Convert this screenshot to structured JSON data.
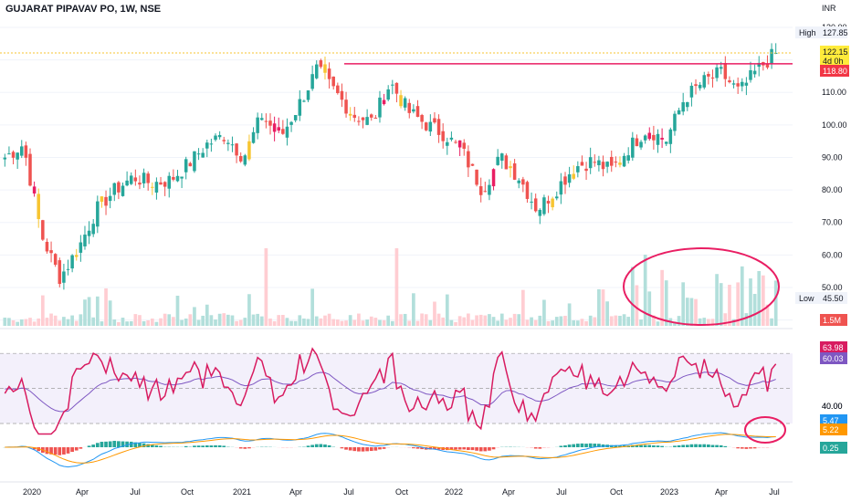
{
  "header": {
    "title": "GUJARAT PIPAVAV PO, 1W, NSE",
    "currency": "INR"
  },
  "colors": {
    "up": "#26a69a",
    "down": "#ef5350",
    "alt": "#e91e63",
    "yellow": "#f7c531",
    "rsi": "#d81b60",
    "rsi_ma": "#7e57c2",
    "macd": "#2196f3",
    "signal": "#ff9800",
    "annotation": "#e91e63"
  },
  "price_axis": {
    "ticks": [
      "130.00",
      "120.00",
      "110.00",
      "100.00",
      "90.00",
      "80.00",
      "70.00",
      "60.00",
      "50.00",
      "40.00"
    ]
  },
  "labels": {
    "high_label": "High",
    "high_value": "127.85",
    "last_value": "122.15",
    "countdown": "4d 0h",
    "resistance_value": "118.80",
    "low_label": "Low",
    "low_value": "45.50",
    "volume_value": "1.5M",
    "rsi_value": "63.98",
    "rsi_ma_value": "60.03",
    "rsi_level": "40.00",
    "macd_value": "5.47",
    "signal_value": "5.22",
    "hist_value": "0.25"
  },
  "time_axis": [
    "2020",
    "Apr",
    "Jul",
    "Oct",
    "2021",
    "Apr",
    "Jul",
    "Oct",
    "2022",
    "Apr",
    "Jul",
    "Oct",
    "2023",
    "Apr",
    "Jul"
  ],
  "chart_data": {
    "type": "candlestick",
    "title": "GUJARAT PIPAVAV PO, 1W, NSE",
    "ylim": [
      40,
      130
    ],
    "resistance": 118.8,
    "keypoints": [
      {
        "t": "2020-01",
        "close": 90
      },
      {
        "t": "2020-02",
        "close": 94
      },
      {
        "t": "2020-03",
        "close": 66
      },
      {
        "t": "2020-04",
        "close": 53
      },
      {
        "t": "2020-05",
        "close": 62
      },
      {
        "t": "2020-06",
        "close": 74
      },
      {
        "t": "2020-07",
        "close": 80
      },
      {
        "t": "2020-08",
        "close": 84
      },
      {
        "t": "2020-09",
        "close": 82
      },
      {
        "t": "2020-10",
        "close": 83
      },
      {
        "t": "2020-11",
        "close": 88
      },
      {
        "t": "2020-12",
        "close": 94
      },
      {
        "t": "2021-01",
        "close": 97
      },
      {
        "t": "2021-02",
        "close": 90
      },
      {
        "t": "2021-03",
        "close": 103
      },
      {
        "t": "2021-04",
        "close": 96
      },
      {
        "t": "2021-05",
        "close": 106
      },
      {
        "t": "2021-06",
        "close": 117
      },
      {
        "t": "2021-07",
        "close": 110
      },
      {
        "t": "2021-08",
        "close": 103
      },
      {
        "t": "2021-09",
        "close": 101
      },
      {
        "t": "2021-10",
        "close": 113
      },
      {
        "t": "2021-11",
        "close": 104
      },
      {
        "t": "2021-12",
        "close": 100
      },
      {
        "t": "2022-01",
        "close": 97
      },
      {
        "t": "2022-02",
        "close": 91
      },
      {
        "t": "2022-03",
        "close": 80
      },
      {
        "t": "2022-04",
        "close": 90
      },
      {
        "t": "2022-05",
        "close": 84
      },
      {
        "t": "2022-06",
        "close": 74
      },
      {
        "t": "2022-07",
        "close": 80
      },
      {
        "t": "2022-08",
        "close": 87
      },
      {
        "t": "2022-09",
        "close": 89
      },
      {
        "t": "2022-10",
        "close": 86
      },
      {
        "t": "2022-11",
        "close": 93
      },
      {
        "t": "2022-12",
        "close": 99
      },
      {
        "t": "2023-01",
        "close": 95
      },
      {
        "t": "2023-02",
        "close": 108
      },
      {
        "t": "2023-03",
        "close": 113
      },
      {
        "t": "2023-04",
        "close": 116
      },
      {
        "t": "2023-05",
        "close": 110
      },
      {
        "t": "2023-06",
        "close": 117
      },
      {
        "t": "2023-07",
        "close": 122.15
      }
    ],
    "high": 127.85,
    "low": 45.5,
    "rsi_last": 63.98,
    "rsi_ma_last": 60.03,
    "macd_last": 5.47,
    "signal_last": 5.22,
    "hist_last": 0.25,
    "volume_last": "1.5M"
  }
}
